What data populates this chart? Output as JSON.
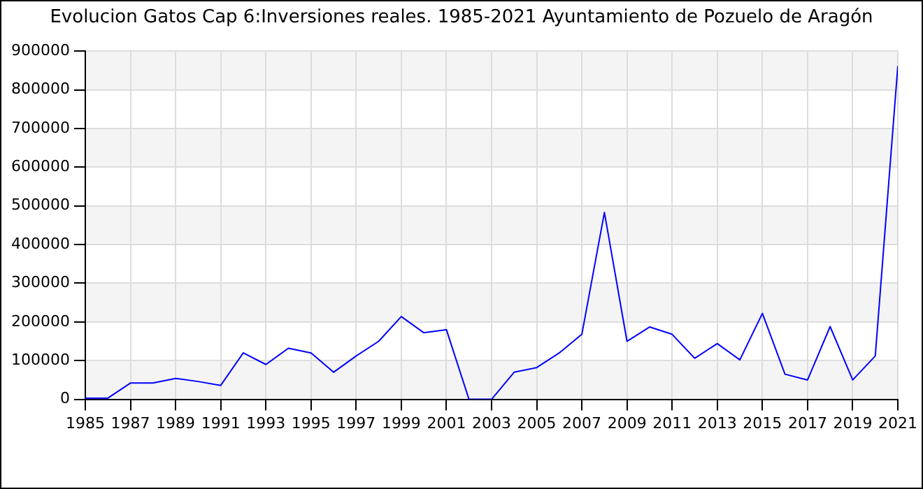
{
  "chart_data": {
    "type": "line",
    "title": "Evolucion Gatos Cap 6:Inversiones reales. 1985-2021 Ayuntamiento de Pozuelo de Aragón",
    "x": [
      1985,
      1986,
      1987,
      1988,
      1989,
      1990,
      1991,
      1992,
      1993,
      1994,
      1995,
      1996,
      1997,
      1998,
      1999,
      2000,
      2001,
      2002,
      2003,
      2004,
      2005,
      2006,
      2007,
      2008,
      2009,
      2010,
      2011,
      2012,
      2013,
      2014,
      2015,
      2016,
      2017,
      2018,
      2019,
      2020,
      2021
    ],
    "series": [
      {
        "color": "#0000ff",
        "values": [
          3000,
          3000,
          42000,
          42000,
          54000,
          46000,
          36000,
          120000,
          90000,
          132000,
          120000,
          70000,
          112000,
          150000,
          214000,
          172000,
          180000,
          0,
          0,
          70000,
          82000,
          120000,
          168000,
          483000,
          150000,
          187000,
          168000,
          106000,
          144000,
          102000,
          222000,
          65000,
          50000,
          188000,
          50000,
          112000,
          862000
        ]
      }
    ],
    "xlim": [
      1985,
      2021
    ],
    "xticks": [
      1985,
      1987,
      1989,
      1991,
      1993,
      1995,
      1997,
      1999,
      2001,
      2003,
      2005,
      2007,
      2009,
      2011,
      2013,
      2015,
      2017,
      2019,
      2021
    ],
    "ylim": [
      0,
      900000
    ],
    "yticks": [
      0,
      100000,
      200000,
      300000,
      400000,
      500000,
      600000,
      700000,
      800000,
      900000
    ],
    "grid": true,
    "legend": false,
    "marker": "none",
    "line_style": "solid"
  }
}
